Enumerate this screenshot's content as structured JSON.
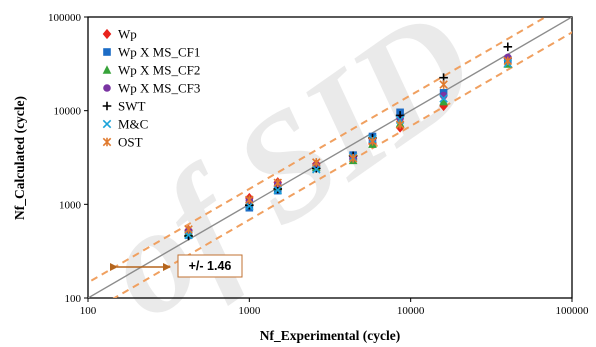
{
  "chart_data": {
    "type": "scatter",
    "title": "",
    "xlabel": "Nf_Experimental (cycle)",
    "ylabel": "Nf_Calculated (cycle)",
    "xscale": "log",
    "yscale": "log",
    "xlim": [
      100,
      100000
    ],
    "ylim": [
      100,
      100000
    ],
    "x_ticks": [
      "100",
      "1000",
      "10000",
      "100000"
    ],
    "y_ticks": [
      "100",
      "1000",
      "10000",
      "100000"
    ],
    "grid": false,
    "legend_position": "top-left",
    "reference_lines": [
      {
        "kind": "identity",
        "factor": 1,
        "color": "#8c8c8c",
        "style": "solid"
      },
      {
        "kind": "scatter-band-upper",
        "factor": 1.46,
        "color": "#f0a060",
        "style": "dashed"
      },
      {
        "kind": "scatter-band-lower",
        "factor": 0.6849,
        "color": "#f0a060",
        "style": "dashed"
      }
    ],
    "annotation": {
      "text": "+/- 1.46",
      "arrow_color": "#b5651d",
      "box_border": "#c07030"
    },
    "series": [
      {
        "name": "Wp",
        "marker": "diamond",
        "color": "#e8221b",
        "x": [
          420,
          1000,
          1500,
          2600,
          4400,
          5800,
          8600,
          16000,
          40000
        ],
        "y": [
          530,
          1170,
          1720,
          2700,
          3050,
          4500,
          6600,
          11200,
          36000
        ]
      },
      {
        "name": "Wp X MS_CF1",
        "marker": "square",
        "color": "#1c6cc6",
        "x": [
          420,
          1000,
          1500,
          2600,
          4400,
          5800,
          8600,
          16000,
          40000
        ],
        "y": [
          470,
          920,
          1400,
          2450,
          3350,
          5300,
          9600,
          15500,
          35000
        ]
      },
      {
        "name": "Wp X MS_CF2",
        "marker": "triangle",
        "color": "#37a33a",
        "x": [
          420,
          1000,
          1500,
          2600,
          4400,
          5800,
          8600,
          16000,
          40000
        ],
        "y": [
          490,
          1050,
          1550,
          2500,
          2950,
          4400,
          7300,
          12500,
          31500
        ]
      },
      {
        "name": "Wp X MS_CF3",
        "marker": "circle",
        "color": "#7a34a2",
        "x": [
          420,
          1000,
          1500,
          2600,
          4400,
          5800,
          8600,
          16000,
          40000
        ],
        "y": [
          520,
          1100,
          1650,
          2600,
          3150,
          4800,
          8300,
          14500,
          37000
        ]
      },
      {
        "name": "SWT",
        "marker": "plus",
        "color": "#000000",
        "x": [
          420,
          1000,
          1500,
          2600,
          4400,
          5800,
          8600,
          16000,
          40000
        ],
        "y": [
          460,
          980,
          1460,
          2420,
          3300,
          5100,
          8900,
          22500,
          48000
        ]
      },
      {
        "name": "M&C",
        "marker": "x",
        "color": "#1ba3d9",
        "x": [
          420,
          1000,
          1500,
          2600,
          4400,
          5800,
          8600,
          16000,
          40000
        ],
        "y": [
          470,
          960,
          1420,
          2360,
          3200,
          5000,
          8000,
          13500,
          32000
        ]
      },
      {
        "name": "OST",
        "marker": "asterisk",
        "color": "#e07a2e",
        "x": [
          420,
          1000,
          1500,
          2600,
          4400,
          5800,
          8600,
          16000,
          40000
        ],
        "y": [
          540,
          1120,
          1700,
          2800,
          3100,
          4700,
          7100,
          19000,
          34000
        ]
      }
    ]
  },
  "watermark": {
    "text": "of SID",
    "color": "#d9d9d9"
  }
}
